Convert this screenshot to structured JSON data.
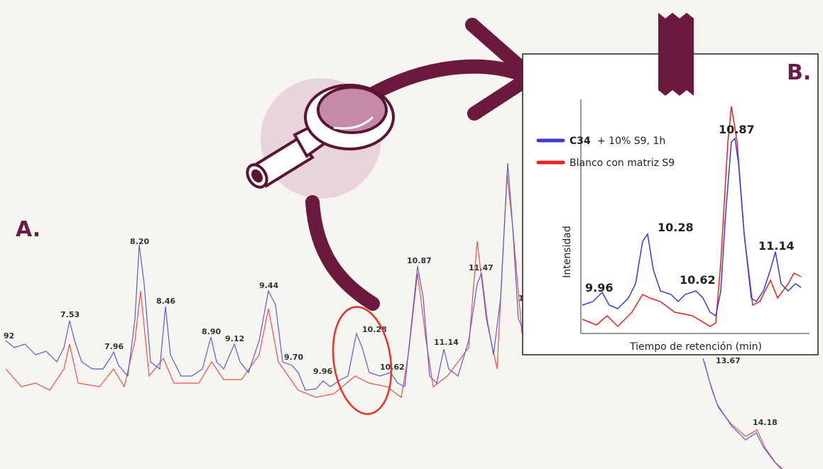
{
  "panel_a": {
    "label": "A.",
    "peaks": [
      "92",
      "7.53",
      "7.96",
      "8.20",
      "8.46",
      "8.90",
      "9.12",
      "9.44",
      "9.70",
      "9.96",
      "10.28",
      "10.62",
      "10.87",
      "11.14",
      "11.47",
      "1",
      "13.67",
      "14.18"
    ]
  },
  "panel_b": {
    "label": "B.",
    "legend": [
      {
        "compound": "C34",
        "detail": "+ 10% S9, 1h"
      },
      {
        "detail": "Blanco con matriz S9"
      }
    ],
    "y_label": "Intensidad",
    "x_label": "Tiempo de retención (min)",
    "peaks": [
      "10.87",
      "10.28",
      "11.14",
      "9.96",
      "10.62"
    ]
  }
}
